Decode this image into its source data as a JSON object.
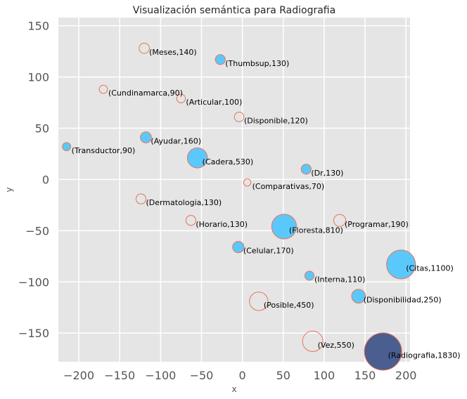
{
  "chart_data": {
    "type": "scatter",
    "title": "Visualización semántica para Radiografia",
    "xlabel": "x",
    "ylabel": "y",
    "xlim": [
      -225,
      205
    ],
    "ylim": [
      -178,
      158
    ],
    "xticks": [
      -200,
      -150,
      -100,
      -50,
      0,
      50,
      100,
      150,
      200
    ],
    "yticks": [
      -150,
      -100,
      -50,
      0,
      50,
      100,
      150
    ],
    "grid": true,
    "colors": {
      "plot_bg": "#e5e5e5",
      "grid": "#ffffff",
      "filled": "#5bc8fb",
      "edge": "#e8735a",
      "main": "#4a5f8f",
      "text": "#000000",
      "tick_text": "#555555"
    },
    "points": [
      {
        "label": "(Meses,140)",
        "x": -120,
        "y": 128,
        "size": 140,
        "filled": false
      },
      {
        "label": "(Thumbsup,130)",
        "x": -27,
        "y": 117,
        "size": 130,
        "filled": true
      },
      {
        "label": "(Cundinamarca,90)",
        "x": -170,
        "y": 88,
        "size": 90,
        "filled": false
      },
      {
        "label": "(Articular,100)",
        "x": -75,
        "y": 79,
        "size": 100,
        "filled": false
      },
      {
        "label": "(Disponible,120)",
        "x": -4,
        "y": 61,
        "size": 120,
        "filled": false
      },
      {
        "label": "(Ayudar,160)",
        "x": -118,
        "y": 41,
        "size": 160,
        "filled": true
      },
      {
        "label": "(Transductor,90)",
        "x": -215,
        "y": 32,
        "size": 90,
        "filled": true
      },
      {
        "label": "(Cadera,530)",
        "x": -55,
        "y": 21,
        "size": 530,
        "filled": true
      },
      {
        "label": "(Dr,130)",
        "x": 78,
        "y": 10,
        "size": 130,
        "filled": true
      },
      {
        "label": "(Comparativas,70)",
        "x": 6,
        "y": -3,
        "size": 70,
        "filled": false
      },
      {
        "label": "(Dermatologia,130)",
        "x": -124,
        "y": -19,
        "size": 130,
        "filled": false
      },
      {
        "label": "(Horario,130)",
        "x": -63,
        "y": -40,
        "size": 130,
        "filled": false
      },
      {
        "label": "(Programar,190)",
        "x": 119,
        "y": -40,
        "size": 190,
        "filled": false
      },
      {
        "label": "(Floresta,810)",
        "x": 51,
        "y": -46,
        "size": 810,
        "filled": true
      },
      {
        "label": "(Celular,170)",
        "x": -5,
        "y": -66,
        "size": 170,
        "filled": true
      },
      {
        "label": "(Citas,1100)",
        "x": 194,
        "y": -83,
        "size": 1100,
        "filled": true
      },
      {
        "label": "(Interna,110)",
        "x": 82,
        "y": -94,
        "size": 110,
        "filled": true
      },
      {
        "label": "(Disponibilidad,250)",
        "x": 142,
        "y": -114,
        "size": 250,
        "filled": true
      },
      {
        "label": "(Posible,450)",
        "x": 20,
        "y": -119,
        "size": 450,
        "filled": false
      },
      {
        "label": "(Vez,550)",
        "x": 86,
        "y": -158,
        "size": 550,
        "filled": false
      },
      {
        "label": "(Radiografia,1830)",
        "x": 172,
        "y": -168,
        "size": 1830,
        "filled": "main"
      }
    ]
  }
}
